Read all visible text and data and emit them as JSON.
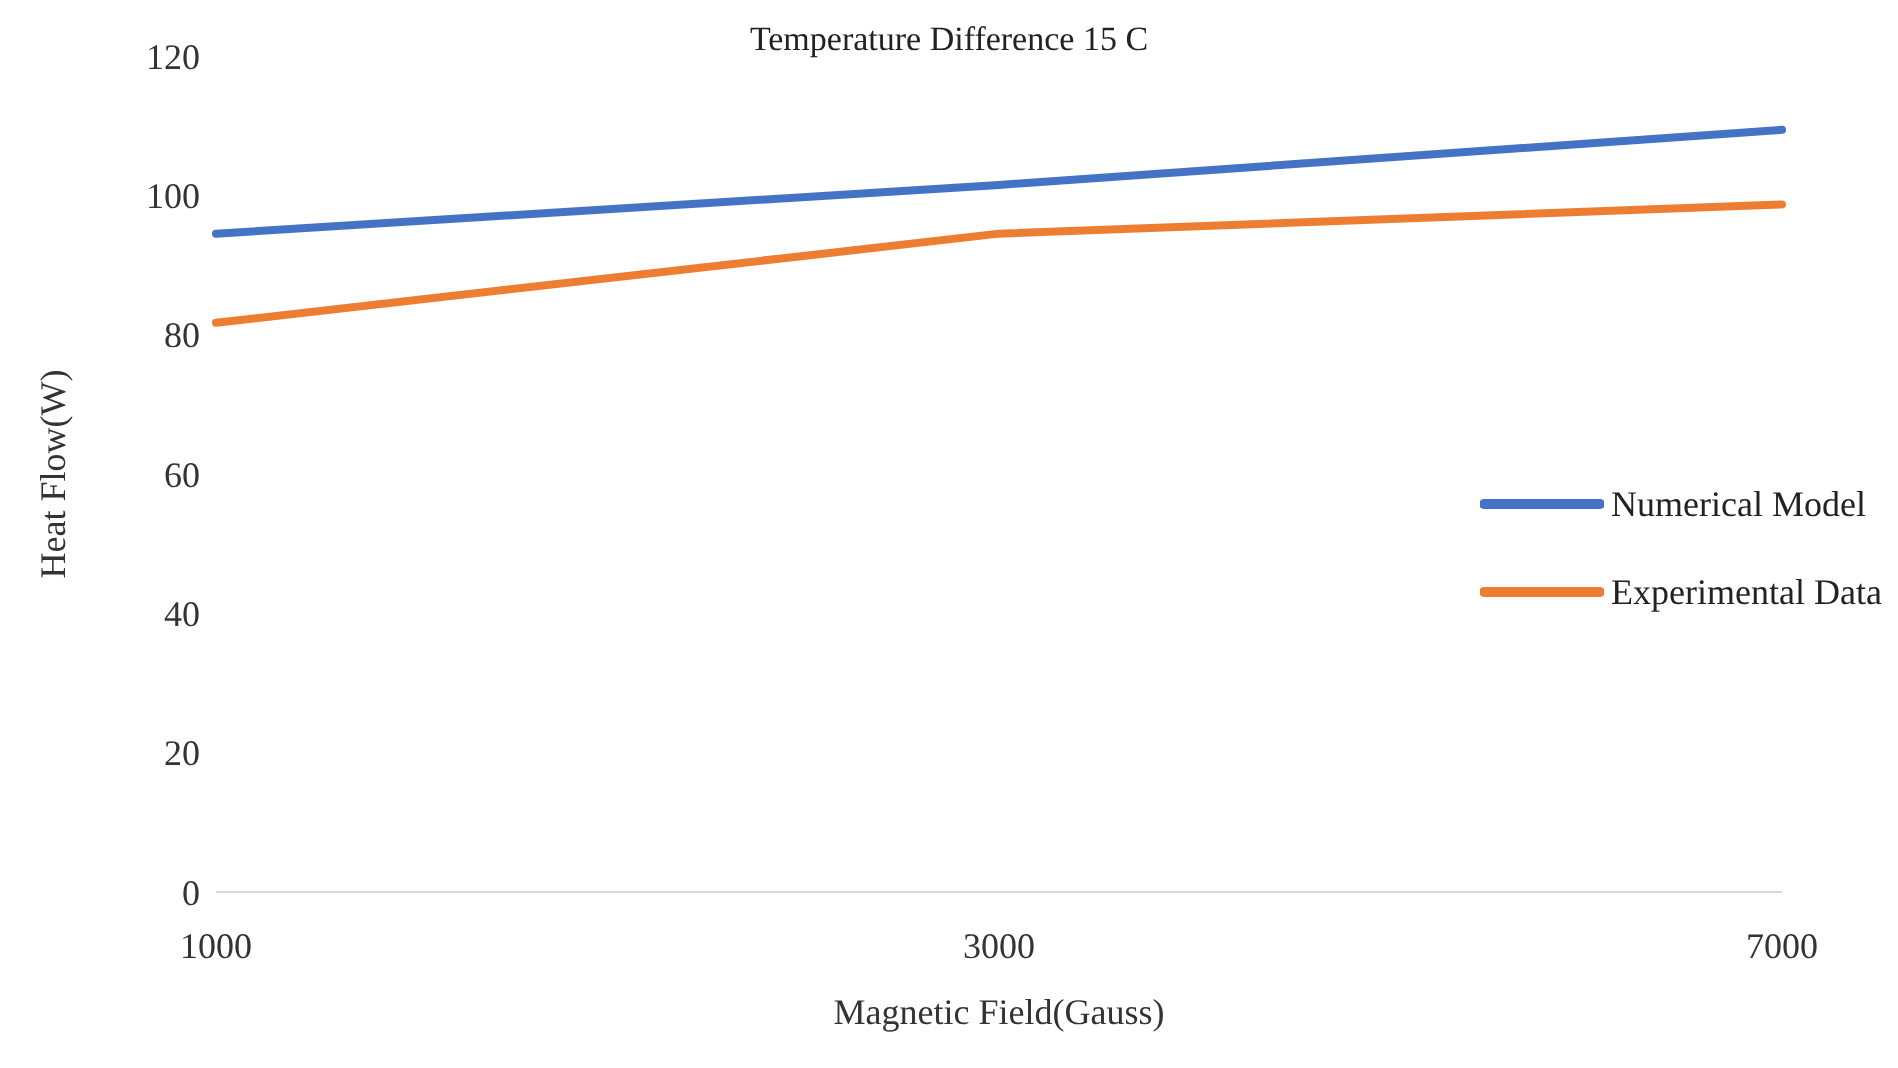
{
  "chart_data": {
    "type": "line",
    "title": "Temperature Difference 15 C",
    "xlabel": "Magnetic Field(Gauss)",
    "ylabel": "Heat Flow(W)",
    "categories": [
      "1000",
      "3000",
      "7000"
    ],
    "series": [
      {
        "name": "Numerical Model",
        "color": "#4472c4",
        "values": [
          94.5,
          101.5,
          109.4
        ]
      },
      {
        "name": "Experimental Data",
        "color": "#ed7d31",
        "values": [
          81.7,
          94.5,
          98.7
        ]
      }
    ],
    "ylim": [
      0,
      120
    ],
    "yticks": [
      0,
      20,
      40,
      60,
      80,
      100,
      120
    ],
    "legend": "right",
    "marker": "none",
    "line_style": "solid"
  }
}
